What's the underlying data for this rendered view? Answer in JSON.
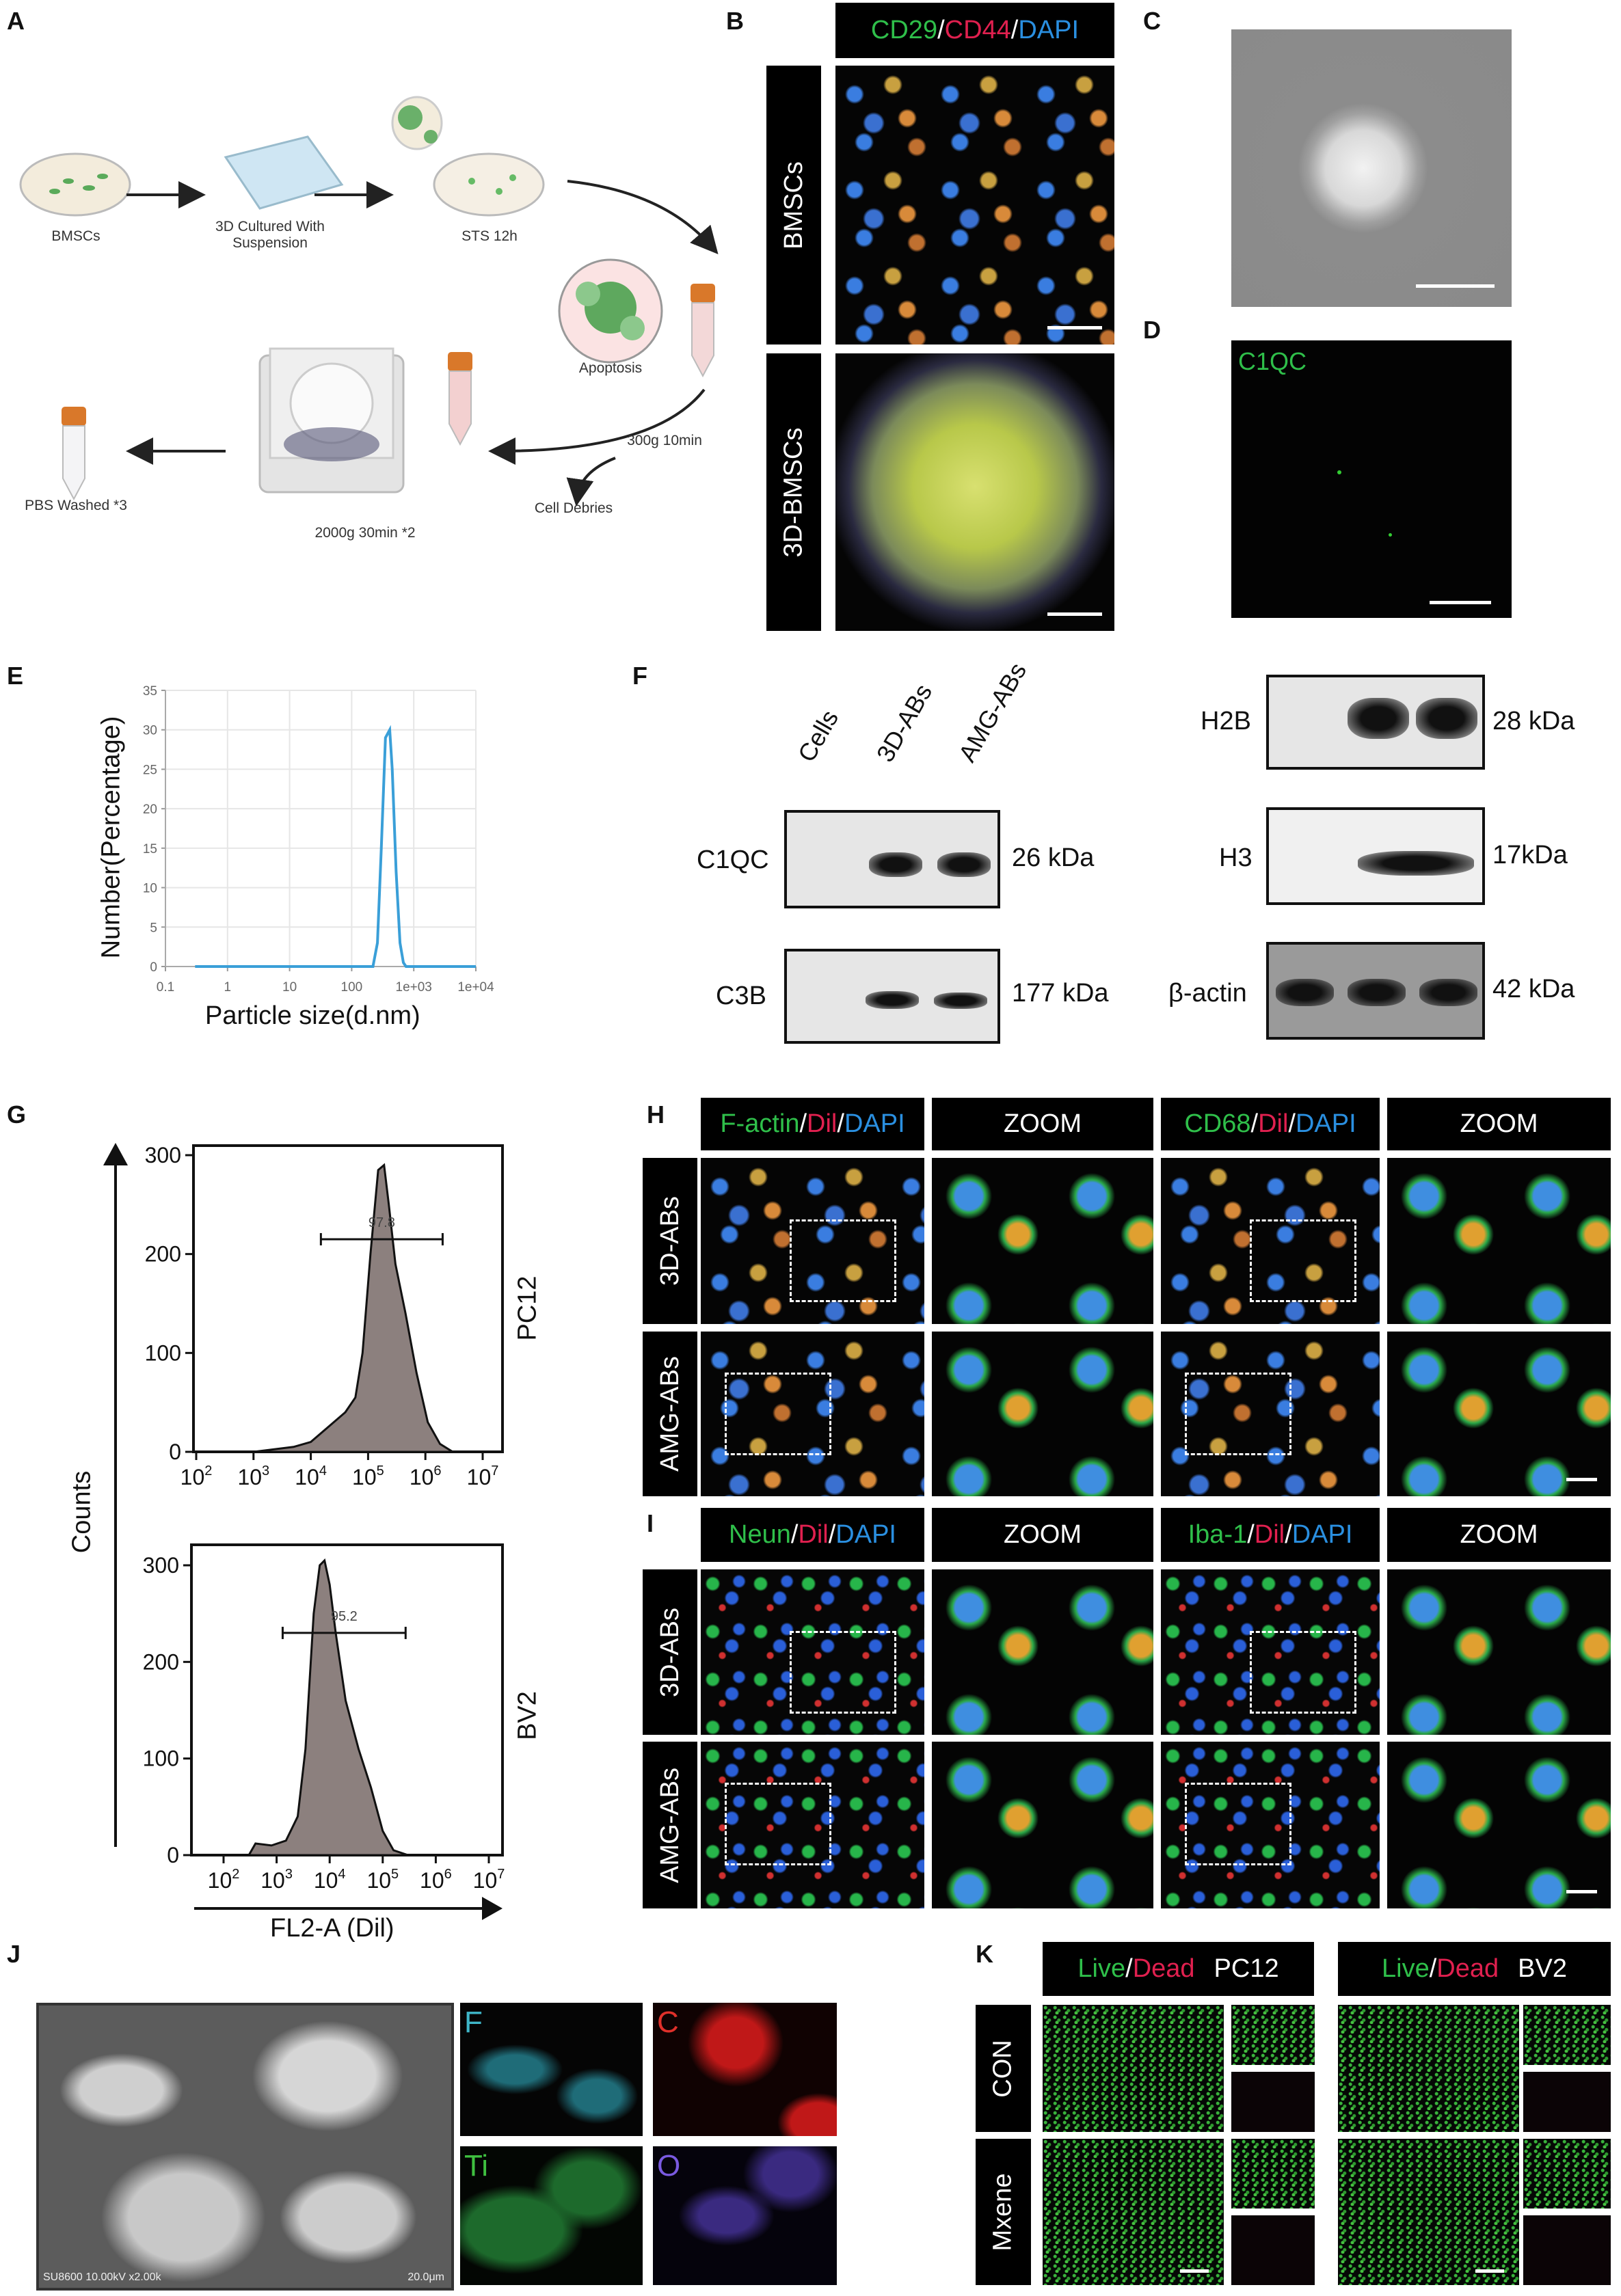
{
  "panels": {
    "A": {
      "letter": "A",
      "steps": {
        "bmscs": "BMSCs",
        "culture_line1": "3D Cultured With",
        "culture_line2": "Suspension",
        "sts": "STS 12h",
        "apoptosis": "Apoptosis",
        "spin1": "300g 10min",
        "debris": "Cell Debries",
        "spin2": "2000g 30min *2",
        "wash": "PBS Washed *3"
      }
    },
    "B": {
      "letter": "B",
      "header": {
        "ch1": "CD29",
        "sep1": "/",
        "ch2": "CD44",
        "sep2": "/",
        "ch3": "DAPI"
      },
      "rows": [
        "BMSCs",
        "3D-BMSCs"
      ],
      "colors": {
        "ch1": "#2fbf4a",
        "ch2": "#e0204f",
        "ch3": "#2a8fe0"
      }
    },
    "C": {
      "letter": "C"
    },
    "D": {
      "letter": "D",
      "stain": "C1QC"
    },
    "E": {
      "letter": "E"
    },
    "F": {
      "letter": "F",
      "lanes": [
        "Cells",
        "3D-ABs",
        "AMG-ABs"
      ],
      "blots": [
        {
          "protein": "C1QC",
          "mw": "26 kDa"
        },
        {
          "protein": "C3B",
          "mw": "177 kDa"
        },
        {
          "protein": "H2B",
          "mw": "28 kDa"
        },
        {
          "protein": "H3",
          "mw": "17kDa"
        },
        {
          "protein": "β-actin",
          "mw": "42 kDa"
        }
      ]
    },
    "G": {
      "letter": "G"
    },
    "H": {
      "letter": "H",
      "headers": [
        {
          "a": "F-actin",
          "b": "Dil",
          "c": "DAPI"
        },
        {
          "text": "ZOOM"
        },
        {
          "a": "CD68",
          "b": "Dil",
          "c": "DAPI"
        },
        {
          "text": "ZOOM"
        }
      ],
      "rows": [
        "3D-ABs",
        "AMG-ABs"
      ]
    },
    "I": {
      "letter": "I",
      "headers": [
        {
          "a": "Neun",
          "b": "Dil",
          "c": "DAPI"
        },
        {
          "text": "ZOOM"
        },
        {
          "a": "Iba-1",
          "b": "Dil",
          "c": "DAPI"
        },
        {
          "text": "ZOOM"
        }
      ],
      "rows": [
        "3D-ABs",
        "AMG-ABs"
      ]
    },
    "J": {
      "letter": "J",
      "sem_info": "SU8600 10.00kV x2.00k",
      "sem_scale": "20.0μm",
      "elements": [
        {
          "symbol": "F",
          "color": "#3fb6c8"
        },
        {
          "symbol": "C",
          "color": "#e0302a"
        },
        {
          "symbol": "Ti",
          "color": "#3fc040"
        },
        {
          "symbol": "O",
          "color": "#7a5ae0"
        }
      ]
    },
    "K": {
      "letter": "K",
      "headers": [
        {
          "live": "Live",
          "sep": "/",
          "dead": "Dead",
          "cell": "PC12"
        },
        {
          "live": "Live",
          "sep": "/",
          "dead": "Dead",
          "cell": "BV2"
        }
      ],
      "rows": [
        "CON",
        "Mxene"
      ]
    }
  },
  "colors": {
    "green": "#2fbf4a",
    "red": "#e0204f",
    "blue": "#2a8fe0",
    "curve": "#3a9fd8",
    "histfill": "#8c807e"
  },
  "chart_data": [
    {
      "panel": "E",
      "type": "line",
      "xlabel": "Particle size(d.nm)",
      "ylabel": "Number(Percentage)",
      "xscale": "log",
      "xlim": [
        0.1,
        10000
      ],
      "ylim": [
        0,
        35
      ],
      "xticks": [
        "0.1",
        "1",
        "10",
        "100",
        "1e+03",
        "1e+04"
      ],
      "xtick_values": [
        0.1,
        1,
        10,
        100,
        1000,
        10000
      ],
      "yticks": [
        0,
        5,
        10,
        15,
        20,
        25,
        30,
        35
      ],
      "grid": true,
      "series": [
        {
          "x": [
            0.3,
            220,
            260,
            300,
            350,
            410,
            450,
            520,
            600,
            680,
            750,
            10000
          ],
          "y": [
            0,
            0,
            3,
            15,
            29,
            30,
            25,
            12,
            3,
            0.5,
            0,
            0
          ]
        }
      ]
    },
    {
      "panel": "G",
      "type": "area",
      "xlabel": "FL2-A (Dil)",
      "ylabel": "Counts",
      "xscale": "log",
      "subplots": [
        {
          "name": "PC12",
          "xlim": [
            100,
            10000000
          ],
          "ylim": [
            0,
            300
          ],
          "yticks": [
            0,
            100,
            200,
            300
          ],
          "xtick_exponents": [
            2,
            3,
            4,
            5,
            6,
            7
          ],
          "gate": {
            "label": "97.8",
            "from": 15000,
            "to": 2000000,
            "level": 215
          },
          "x": [
            1000,
            5000,
            10000,
            20000,
            40000,
            60000,
            80000,
            110000,
            150000,
            190000,
            230000,
            300000,
            450000,
            700000,
            1100000,
            1800000,
            3000000
          ],
          "y": [
            0,
            5,
            10,
            25,
            40,
            55,
            100,
            200,
            285,
            290,
            250,
            190,
            140,
            80,
            30,
            8,
            0
          ]
        },
        {
          "name": "BV2",
          "xlim": [
            50,
            12000000
          ],
          "ylim": [
            0,
            300
          ],
          "yticks": [
            0,
            100,
            200,
            300
          ],
          "xtick_exponents": [
            2,
            3,
            4,
            5,
            6,
            7
          ],
          "gate": {
            "label": "95.2",
            "from": 1300,
            "to": 270000,
            "level": 230
          },
          "x": [
            300,
            400,
            800,
            1500,
            2500,
            3500,
            5000,
            6500,
            8000,
            10000,
            13000,
            20000,
            35000,
            60000,
            100000,
            160000,
            300000
          ],
          "y": [
            0,
            12,
            10,
            15,
            40,
            110,
            250,
            300,
            305,
            280,
            230,
            160,
            110,
            70,
            25,
            5,
            0
          ]
        }
      ]
    }
  ]
}
